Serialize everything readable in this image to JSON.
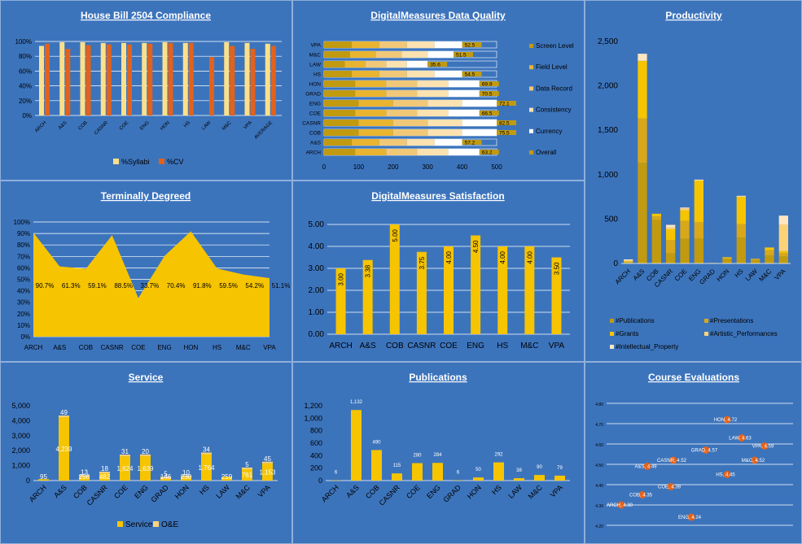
{
  "colors": {
    "background": "#3c74bc",
    "gold": "#f6c400",
    "dark_gold": "#c19a10",
    "orange": "#e2621b",
    "light": "#fbe08a",
    "pale": "#fdebb8",
    "grid": "#ffffff"
  },
  "chart_data": [
    {
      "id": "hb2504",
      "type": "bar",
      "title": "House Bill 2504 Compliance",
      "categories": [
        "ARCH",
        "A&S",
        "COB",
        "CASNR",
        "COE",
        "ENG",
        "HON",
        "HS",
        "LAW",
        "M&C",
        "VPA",
        "AVERAGE"
      ],
      "series": [
        {
          "name": "%Syllabi",
          "color": "#fbe08a",
          "values": [
            94,
            99,
            99,
            98,
            98,
            98,
            99,
            98,
            null,
            99,
            98,
            97
          ]
        },
        {
          "name": "%CV",
          "color": "#e2621b",
          "values": [
            97,
            90,
            95,
            96,
            96,
            97,
            98,
            98,
            79,
            94,
            90,
            94
          ]
        }
      ],
      "ylim": [
        0,
        100
      ],
      "yticks": [
        "0%",
        "20%",
        "40%",
        "60%",
        "80%",
        "100%"
      ],
      "legend": "bottom"
    },
    {
      "id": "dmdq",
      "type": "bar",
      "orientation": "horizontal",
      "stacked": true,
      "title": "DigitalMeasures Data Quality",
      "categories": [
        "VPA",
        "M&C",
        "LAW",
        "HS",
        "HON",
        "GRAD",
        "ENG",
        "COE",
        "CASNR",
        "COB",
        "A&S",
        "ARCH"
      ],
      "series": [
        {
          "name": "Screen Level",
          "color": "#c19a10",
          "values": [
            80,
            75,
            60,
            80,
            90,
            90,
            100,
            90,
            100,
            100,
            80,
            90
          ]
        },
        {
          "name": "Field Level",
          "color": "#e9b430",
          "values": [
            80,
            75,
            60,
            80,
            90,
            90,
            100,
            90,
            100,
            100,
            80,
            90
          ]
        },
        {
          "name": "Data Record",
          "color": "#f0c878",
          "values": [
            80,
            75,
            60,
            80,
            90,
            90,
            100,
            90,
            100,
            100,
            80,
            90
          ]
        },
        {
          "name": "Consistency",
          "color": "#fbe2b0",
          "values": [
            80,
            75,
            60,
            80,
            90,
            90,
            100,
            90,
            100,
            100,
            80,
            90
          ]
        },
        {
          "name": "Currency",
          "color": "#ffffff",
          "values": [
            80,
            75,
            60,
            80,
            90,
            90,
            100,
            90,
            100,
            100,
            80,
            90
          ]
        }
      ],
      "overall": {
        "name": "Overall",
        "color": "#c19a10",
        "values": [
          52.5,
          51.5,
          35.6,
          54.5,
          69.9,
          70.5,
          72.1,
          66.5,
          82.5,
          75.5,
          57.2,
          63.2
        ]
      },
      "xlim": [
        0,
        500
      ],
      "xticks": [
        0,
        100,
        200,
        300,
        400,
        500
      ],
      "legend": "right"
    },
    {
      "id": "productivity",
      "type": "bar",
      "stacked": true,
      "title": "Productivity",
      "categories": [
        "ARCH",
        "A&S",
        "COB",
        "CASNR",
        "COE",
        "ENG",
        "GRAD",
        "HON",
        "HS",
        "LAW",
        "M&C",
        "VPA"
      ],
      "series": [
        {
          "name": "#Publications",
          "color": "#c19a10",
          "values": [
            6,
            1132,
            490,
            115,
            280,
            284,
            6,
            50,
            292,
            38,
            90,
            79
          ]
        },
        {
          "name": "#Presentations",
          "color": "#d8a81a",
          "values": [
            10,
            500,
            40,
            150,
            200,
            180,
            0,
            10,
            150,
            10,
            60,
            40
          ]
        },
        {
          "name": "#Grants",
          "color": "#f6c400",
          "values": [
            10,
            650,
            30,
            120,
            120,
            470,
            0,
            10,
            310,
            5,
            30,
            20
          ]
        },
        {
          "name": "#Artistic_Performances",
          "color": "#fbd27a",
          "values": [
            10,
            0,
            0,
            20,
            20,
            0,
            0,
            0,
            0,
            0,
            0,
            300
          ]
        },
        {
          "name": "#Intellectual_Property",
          "color": "#fde6c0",
          "values": [
            10,
            80,
            0,
            30,
            10,
            10,
            0,
            0,
            10,
            0,
            0,
            100
          ]
        }
      ],
      "ylim": [
        0,
        2500
      ],
      "yticks": [
        "0",
        "500",
        "1,000",
        "1,500",
        "2,000",
        "2,500"
      ],
      "legend": "bottom"
    },
    {
      "id": "terminal",
      "type": "area",
      "title": "Terminally Degreed",
      "categories": [
        "ARCH",
        "A&S",
        "COB",
        "CASNR",
        "COE",
        "ENG",
        "HON",
        "HS",
        "M&C",
        "VPA"
      ],
      "values": [
        90.7,
        61.3,
        59.1,
        88.5,
        33.7,
        70.4,
        91.8,
        59.5,
        54.2,
        51.1
      ],
      "labels": [
        "90.7%",
        "61.3%",
        "59.1%",
        "88.5%",
        "33.7%",
        "70.4%",
        "91.8%",
        "59.5%",
        "54.2%",
        "51.1%"
      ],
      "ylim": [
        0,
        100
      ],
      "yticks": [
        "0%",
        "10%",
        "20%",
        "30%",
        "40%",
        "50%",
        "60%",
        "70%",
        "80%",
        "90%",
        "100%"
      ]
    },
    {
      "id": "dmsat",
      "type": "bar",
      "title": "DigitalMeasures Satisfaction",
      "categories": [
        "ARCH",
        "A&S",
        "COB",
        "CASNR",
        "COE",
        "ENG",
        "HS",
        "M&C",
        "VPA"
      ],
      "values": [
        3.0,
        3.38,
        5.0,
        3.75,
        4.0,
        4.5,
        4.0,
        4.0,
        3.5
      ],
      "labels": [
        "3.00",
        "3.38",
        "5.00",
        "3.75",
        "4.00",
        "4.50",
        "4.00",
        "4.00",
        "3.50"
      ],
      "ylim": [
        0,
        5
      ],
      "yticks": [
        "0.00",
        "1.00",
        "2.00",
        "3.00",
        "4.00",
        "5.00"
      ]
    },
    {
      "id": "service",
      "type": "bar",
      "stacked": true,
      "title": "Service",
      "categories": [
        "ARCH",
        "A&S",
        "COB",
        "CASNR",
        "COE",
        "ENG",
        "GRAD",
        "HON",
        "HS",
        "LAW",
        "M&C",
        "VPA"
      ],
      "series": [
        {
          "name": "Service",
          "color": "#f6c400",
          "values": [
            95,
            4239,
            256,
            482,
            1624,
            1639,
            146,
            230,
            1764,
            259,
            761,
            1153
          ],
          "labels": [
            "95",
            "4,239",
            "256",
            "482",
            "1,624",
            "1,639",
            "146",
            "230",
            "1,764",
            "259",
            "761",
            "1,153"
          ]
        },
        {
          "name": "O&E",
          "color": "#fbd27a",
          "values": [
            0,
            49,
            13,
            18,
            31,
            20,
            5,
            10,
            34,
            0,
            5,
            45
          ],
          "labels": [
            "",
            "49",
            "13",
            "18",
            "31",
            "20",
            "5",
            "10",
            "34",
            "",
            "5",
            "45"
          ]
        }
      ],
      "ylim": [
        0,
        5000
      ],
      "yticks": [
        "0",
        "1,000",
        "2,000",
        "3,000",
        "4,000",
        "5,000"
      ],
      "legend": "bottom"
    },
    {
      "id": "publications",
      "type": "bar",
      "title": "Publications",
      "categories": [
        "ARCH",
        "A&S",
        "COB",
        "CASNR",
        "COE",
        "ENG",
        "GRAD",
        "HON",
        "HS",
        "LAW",
        "M&C",
        "VPA"
      ],
      "values": [
        6,
        1132,
        490,
        115,
        280,
        284,
        6,
        50,
        292,
        38,
        90,
        79
      ],
      "labels": [
        "6",
        "1,132",
        "490",
        "115",
        "280",
        "284",
        "6",
        "50",
        "292",
        "38",
        "90",
        "79"
      ],
      "ylim": [
        0,
        1200
      ],
      "yticks": [
        "0",
        "200",
        "400",
        "600",
        "800",
        "1,000",
        "1,200"
      ]
    },
    {
      "id": "courseeval",
      "type": "scatter",
      "title": "Course Evaluations",
      "points": [
        {
          "label": "HON, 4.72",
          "value": 4.72
        },
        {
          "label": "LAW, 4.63",
          "value": 4.63
        },
        {
          "label": "VPA, 4.59",
          "value": 4.59
        },
        {
          "label": "GRAD, 4.57",
          "value": 4.57
        },
        {
          "label": "CASNR, 4.52",
          "value": 4.52
        },
        {
          "label": "M&C, 4.52",
          "value": 4.52
        },
        {
          "label": "A&S, 4.49",
          "value": 4.49
        },
        {
          "label": "HS, 4.45",
          "value": 4.45
        },
        {
          "label": "COE, 4.39",
          "value": 4.39
        },
        {
          "label": "COB, 4.35",
          "value": 4.35
        },
        {
          "label": "ARCH, 4.30",
          "value": 4.3
        },
        {
          "label": "ENG, 4.24",
          "value": 4.24
        }
      ],
      "ylim": [
        4.2,
        4.8
      ],
      "yticks": [
        "4.20",
        "4.30",
        "4.40",
        "4.50",
        "4.60",
        "4.70",
        "4.80"
      ]
    }
  ]
}
